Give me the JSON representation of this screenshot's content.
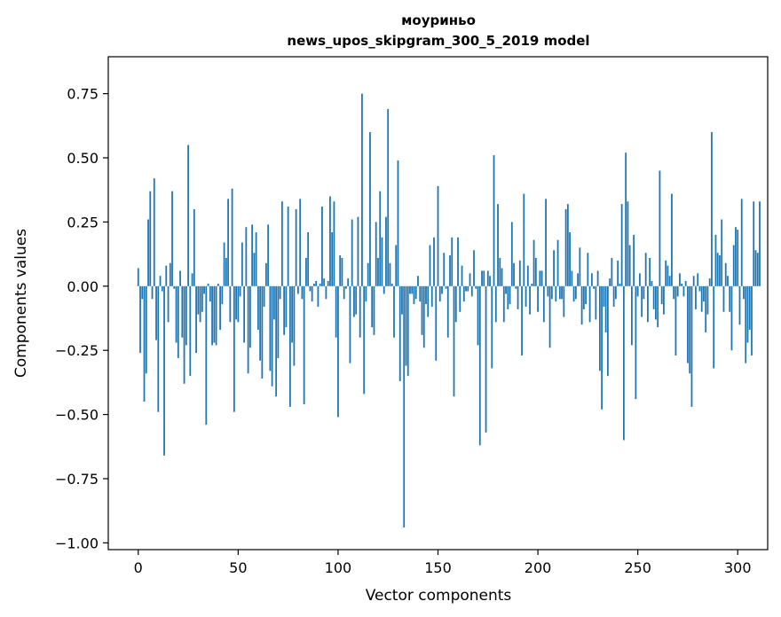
{
  "chart_data": {
    "type": "bar",
    "title_line1": "моуриньо",
    "title_line2": "news_upos_skipgram_300_5_2019 model",
    "xlabel": "Vector components",
    "ylabel": "Components values",
    "xlim": [
      -15,
      315
    ],
    "ylim": [
      -1.0264,
      0.8938
    ],
    "x_ticks": [
      {
        "value": 0,
        "label": "0"
      },
      {
        "value": 50,
        "label": "50"
      },
      {
        "value": 100,
        "label": "100"
      },
      {
        "value": 150,
        "label": "150"
      },
      {
        "value": 200,
        "label": "200"
      },
      {
        "value": 250,
        "label": "250"
      },
      {
        "value": 300,
        "label": "300"
      }
    ],
    "y_ticks": [
      {
        "value": 0.75,
        "label": "0.75"
      },
      {
        "value": 0.5,
        "label": "0.50"
      },
      {
        "value": 0.25,
        "label": "0.25"
      },
      {
        "value": 0.0,
        "label": "0.00"
      },
      {
        "value": -0.25,
        "label": "−0.25"
      },
      {
        "value": -0.5,
        "label": "−0.50"
      },
      {
        "value": -0.75,
        "label": "−0.75"
      },
      {
        "value": -1.0,
        "label": "−1.00"
      }
    ],
    "bar_color": "#1f77b4",
    "values": [
      0.07,
      -0.26,
      -0.05,
      -0.45,
      -0.34,
      0.26,
      0.37,
      -0.05,
      0.42,
      -0.21,
      -0.49,
      0.04,
      -0.02,
      -0.66,
      0.08,
      -0.14,
      0.09,
      0.37,
      -0.01,
      -0.22,
      -0.28,
      0.06,
      -0.2,
      -0.38,
      -0.23,
      0.55,
      -0.35,
      0.05,
      0.3,
      -0.26,
      -0.11,
      -0.14,
      -0.1,
      -0.03,
      -0.54,
      0.01,
      -0.06,
      -0.23,
      -0.22,
      -0.23,
      0.01,
      -0.17,
      -0.07,
      0.17,
      0.11,
      0.34,
      -0.14,
      0.38,
      -0.49,
      -0.13,
      -0.14,
      -0.04,
      0.17,
      -0.22,
      0.23,
      -0.34,
      -0.24,
      0.24,
      0.13,
      0.21,
      -0.17,
      -0.29,
      -0.36,
      -0.08,
      0.09,
      0.24,
      -0.33,
      -0.39,
      -0.13,
      -0.43,
      -0.28,
      -0.05,
      0.33,
      -0.19,
      -0.16,
      0.31,
      -0.47,
      -0.22,
      -0.31,
      0.3,
      -0.03,
      0.34,
      -0.05,
      -0.46,
      0.11,
      0.21,
      -0.02,
      -0.06,
      0.01,
      0.02,
      -0.08,
      0.01,
      0.31,
      0.03,
      -0.05,
      0.02,
      0.35,
      0.21,
      0.33,
      -0.2,
      -0.51,
      0.12,
      0.11,
      -0.05,
      -0.01,
      0.03,
      -0.3,
      0.26,
      -0.12,
      -0.11,
      0.27,
      -0.2,
      0.75,
      -0.42,
      -0.06,
      0.09,
      0.6,
      -0.16,
      -0.19,
      0.25,
      0.11,
      0.37,
      0.19,
      -0.03,
      0.27,
      0.69,
      0.09,
      0.01,
      -0.2,
      0.16,
      0.49,
      -0.37,
      -0.11,
      -0.94,
      -0.31,
      -0.35,
      -0.03,
      -0.03,
      -0.07,
      -0.05,
      0.04,
      -0.06,
      -0.19,
      -0.24,
      -0.07,
      -0.12,
      0.16,
      -0.08,
      0.19,
      -0.29,
      0.39,
      -0.06,
      -0.03,
      0.13,
      -0.01,
      -0.2,
      0.12,
      0.19,
      -0.43,
      -0.14,
      0.19,
      -0.1,
      0.08,
      -0.06,
      -0.02,
      -0.02,
      0.05,
      -0.04,
      0.14,
      -0.01,
      -0.23,
      -0.62,
      0.06,
      0.06,
      -0.57,
      0.06,
      0.04,
      -0.32,
      0.51,
      -0.14,
      0.32,
      0.11,
      0.07,
      -0.14,
      -0.03,
      -0.09,
      -0.07,
      0.25,
      0.09,
      -0.01,
      -0.09,
      0.1,
      -0.27,
      0.36,
      -0.08,
      0.08,
      -0.11,
      0.01,
      0.18,
      0.11,
      -0.1,
      0.06,
      0.06,
      -0.14,
      0.34,
      -0.04,
      -0.24,
      -0.05,
      0.14,
      -0.06,
      0.18,
      -0.05,
      -0.05,
      -0.12,
      0.3,
      0.32,
      0.21,
      0.06,
      -0.06,
      -0.05,
      0.05,
      0.15,
      -0.15,
      -0.09,
      -0.07,
      0.13,
      -0.14,
      0.05,
      -0.01,
      -0.13,
      0.06,
      -0.33,
      -0.48,
      -0.08,
      -0.18,
      -0.35,
      0.03,
      0.11,
      -0.08,
      -0.05,
      0.1,
      0.01,
      0.32,
      -0.6,
      0.52,
      0.33,
      0.16,
      -0.23,
      0.2,
      -0.44,
      -0.04,
      0.05,
      -0.12,
      -0.05,
      0.13,
      -0.14,
      0.11,
      0.02,
      -0.09,
      -0.13,
      -0.16,
      0.45,
      -0.07,
      -0.11,
      0.1,
      0.08,
      0.04,
      0.36,
      -0.05,
      -0.27,
      -0.04,
      0.05,
      0.01,
      -0.04,
      0.02,
      -0.3,
      -0.34,
      -0.47,
      0.04,
      -0.09,
      0.05,
      -0.02,
      -0.1,
      -0.06,
      -0.18,
      -0.11,
      0.03,
      0.6,
      -0.32,
      0.2,
      0.13,
      0.12,
      0.26,
      -0.1,
      0.09,
      0.04,
      -0.1,
      -0.25,
      0.16,
      0.23,
      0.22,
      -0.15,
      0.34,
      -0.05,
      -0.3,
      -0.22,
      -0.17,
      -0.27,
      0.33,
      0.14,
      0.13,
      0.33
    ]
  }
}
